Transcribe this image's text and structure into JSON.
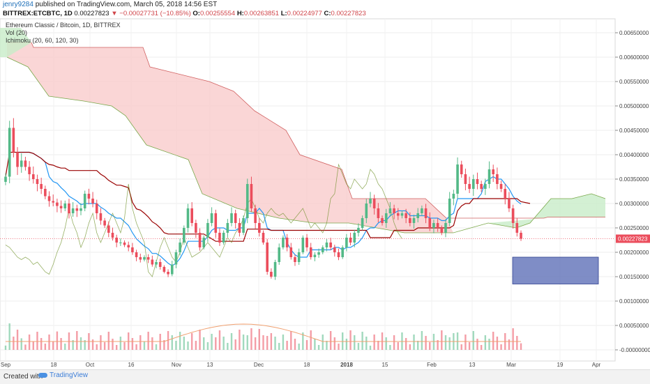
{
  "header": {
    "user": "jenry9284",
    "published": "published on TradingView.com, March 05, 2018 14:56 EST",
    "symbol": "BITTREX:ETCBTC, 1D",
    "last": "0.00227823",
    "change": "−0.00027731 (−10.85%)",
    "o_label": "O:",
    "o": "0.00255554",
    "h_label": "H:",
    "h": "0.00263851",
    "l_label": "L:",
    "l": "0.00224977",
    "c_label": "C:",
    "c": "0.00227823"
  },
  "legend": {
    "title": "Ethereum Classic / Bitcoin, 1D, BITTREX",
    "vol": "Vol (20)",
    "ichimoku": "Ichimoku (20, 60, 120, 30)"
  },
  "footer": {
    "created": "Created with",
    "brand": "TradingView"
  },
  "colors": {
    "up": "#53b987",
    "down": "#eb4d5c",
    "tenkan": "#2196f3",
    "kijun": "#990000",
    "chikou": "#6b8e23",
    "cloud_bear": "#f8c8c8",
    "cloud_bull": "#c8ecc8",
    "price_line": "#eb4d5c",
    "box": "#5f71b8"
  },
  "chart_data": {
    "type": "candlestick",
    "price_label": "0.00227823",
    "y_ticks": [
      "0.00650000",
      "0.00600000",
      "0.00550000",
      "0.00500000",
      "0.00450000",
      "0.00400000",
      "0.00350000",
      "0.00300000",
      "0.00250000",
      "0.00200000",
      "0.00150000",
      "0.00100000",
      "0.00050000",
      "-0.00000000"
    ],
    "x_ticks": [
      "Sep",
      "18",
      "Oct",
      "16",
      "Nov",
      "13",
      "Dec",
      "18",
      "2018",
      "15",
      "Feb",
      "13",
      "Mar",
      "19",
      "Apr"
    ],
    "candles_close": [
      0.00355,
      0.00455,
      0.00405,
      0.00375,
      0.00388,
      0.00375,
      0.0036,
      0.0035,
      0.0034,
      0.0033,
      0.00315,
      0.00305,
      0.00302,
      0.00295,
      0.0029,
      0.003,
      0.0028,
      0.0029,
      0.00285,
      0.0029,
      0.0032,
      0.0031,
      0.003,
      0.0028,
      0.00265,
      0.00255,
      0.0024,
      0.0023,
      0.0022,
      0.0022,
      0.00215,
      0.0021,
      0.002,
      0.0019,
      0.00185,
      0.0019,
      0.00185,
      0.00175,
      0.0018,
      0.0017,
      0.0016,
      0.00155,
      0.00175,
      0.002,
      0.0022,
      0.0025,
      0.0029,
      0.0026,
      0.0024,
      0.0021,
      0.0023,
      0.0026,
      0.0028,
      0.0024,
      0.0022,
      0.0024,
      0.0026,
      0.0028,
      0.0026,
      0.0024,
      0.0027,
      0.0034,
      0.0029,
      0.0026,
      0.0024,
      0.0022,
      0.0016,
      0.0015,
      0.0018,
      0.0021,
      0.0023,
      0.0021,
      0.0019,
      0.0018,
      0.002,
      0.0023,
      0.0021,
      0.0019,
      0.00195,
      0.002,
      0.0021,
      0.0022,
      0.0021,
      0.002,
      0.0019,
      0.0021,
      0.0023,
      0.0022,
      0.0024,
      0.0025,
      0.0027,
      0.003,
      0.0031,
      0.0029,
      0.0027,
      0.0026,
      0.0028,
      0.0029,
      0.0028,
      0.00275,
      0.0028,
      0.0027,
      0.0026,
      0.0027,
      0.0028,
      0.0029,
      0.0027,
      0.0025,
      0.0026,
      0.0025,
      0.0024,
      0.0026,
      0.0031,
      0.0032,
      0.0038,
      0.0036,
      0.0034,
      0.0033,
      0.0035,
      0.0034,
      0.0033,
      0.0034,
      0.0037,
      0.0036,
      0.0034,
      0.0033,
      0.0031,
      0.0029,
      0.0026,
      0.0024,
      0.00227823
    ],
    "annotation_box": {
      "price_top": 0.0019,
      "price_bottom": 0.00135
    }
  }
}
